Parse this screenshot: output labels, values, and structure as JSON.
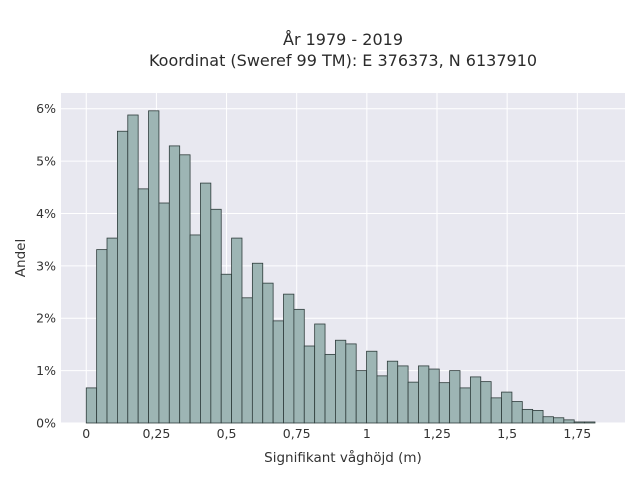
{
  "chart_data": {
    "type": "bar",
    "title_lines": [
      "År 1979 - 2019",
      "Koordinat (Sweref 99 TM): E 376373, N 6137910"
    ],
    "xlabel": "Signifikant våghöjd (m)",
    "ylabel": "Andel",
    "x_ticks": [
      {
        "value": 0,
        "label": "0"
      },
      {
        "value": 0.25,
        "label": "0,25"
      },
      {
        "value": 0.5,
        "label": "0,5"
      },
      {
        "value": 0.75,
        "label": "0,75"
      },
      {
        "value": 1.0,
        "label": "1"
      },
      {
        "value": 1.25,
        "label": "1,25"
      },
      {
        "value": 1.5,
        "label": "1,5"
      },
      {
        "value": 1.75,
        "label": "1,75"
      }
    ],
    "y_ticks": [
      {
        "value": 0,
        "label": "0%"
      },
      {
        "value": 1,
        "label": "1%"
      },
      {
        "value": 2,
        "label": "2%"
      },
      {
        "value": 3,
        "label": "3%"
      },
      {
        "value": 4,
        "label": "4%"
      },
      {
        "value": 5,
        "label": "5%"
      },
      {
        "value": 6,
        "label": "6%"
      }
    ],
    "xlim": [
      -0.09,
      1.92
    ],
    "ylim": [
      0,
      6.3
    ],
    "bin_width": 0.037,
    "bins_start": 0,
    "values": [
      0.67,
      3.31,
      3.53,
      5.57,
      5.88,
      4.47,
      5.96,
      4.2,
      5.29,
      5.12,
      3.59,
      4.58,
      4.08,
      2.84,
      3.53,
      2.39,
      3.05,
      2.67,
      1.95,
      2.46,
      2.17,
      1.47,
      1.89,
      1.31,
      1.58,
      1.51,
      1.0,
      1.37,
      0.9,
      1.18,
      1.09,
      0.78,
      1.09,
      1.03,
      0.77,
      1.0,
      0.67,
      0.88,
      0.79,
      0.48,
      0.59,
      0.41,
      0.26,
      0.24,
      0.12,
      0.1,
      0.06,
      0.02,
      0.02
    ],
    "grid": true,
    "bar_color": "#9db5b4",
    "bar_edge_color": "#2e3c3b",
    "plot_background": "#e8e8f0"
  }
}
